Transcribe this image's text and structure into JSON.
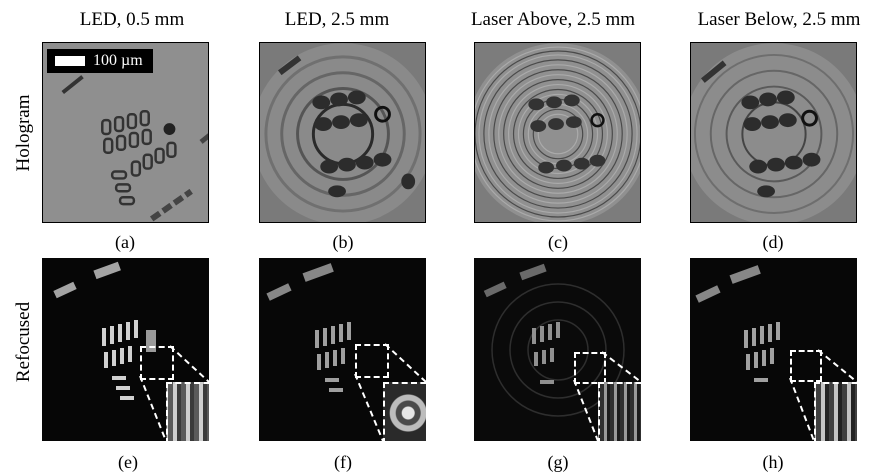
{
  "columns": [
    {
      "title": "LED, 0.5 mm"
    },
    {
      "title": "LED, 2.5 mm"
    },
    {
      "title": "Laser Above, 2.5 mm"
    },
    {
      "title": "Laser Below, 2.5 mm"
    }
  ],
  "rows": {
    "hologram_label": "Hologram",
    "refocused_label": "Refocused"
  },
  "scale_bar": {
    "label": "100 µm"
  },
  "captions": {
    "a": "(a)",
    "b": "(b)",
    "c": "(c)",
    "d": "(d)",
    "e": "(e)",
    "f": "(f)",
    "g": "(g)",
    "h": "(h)"
  }
}
